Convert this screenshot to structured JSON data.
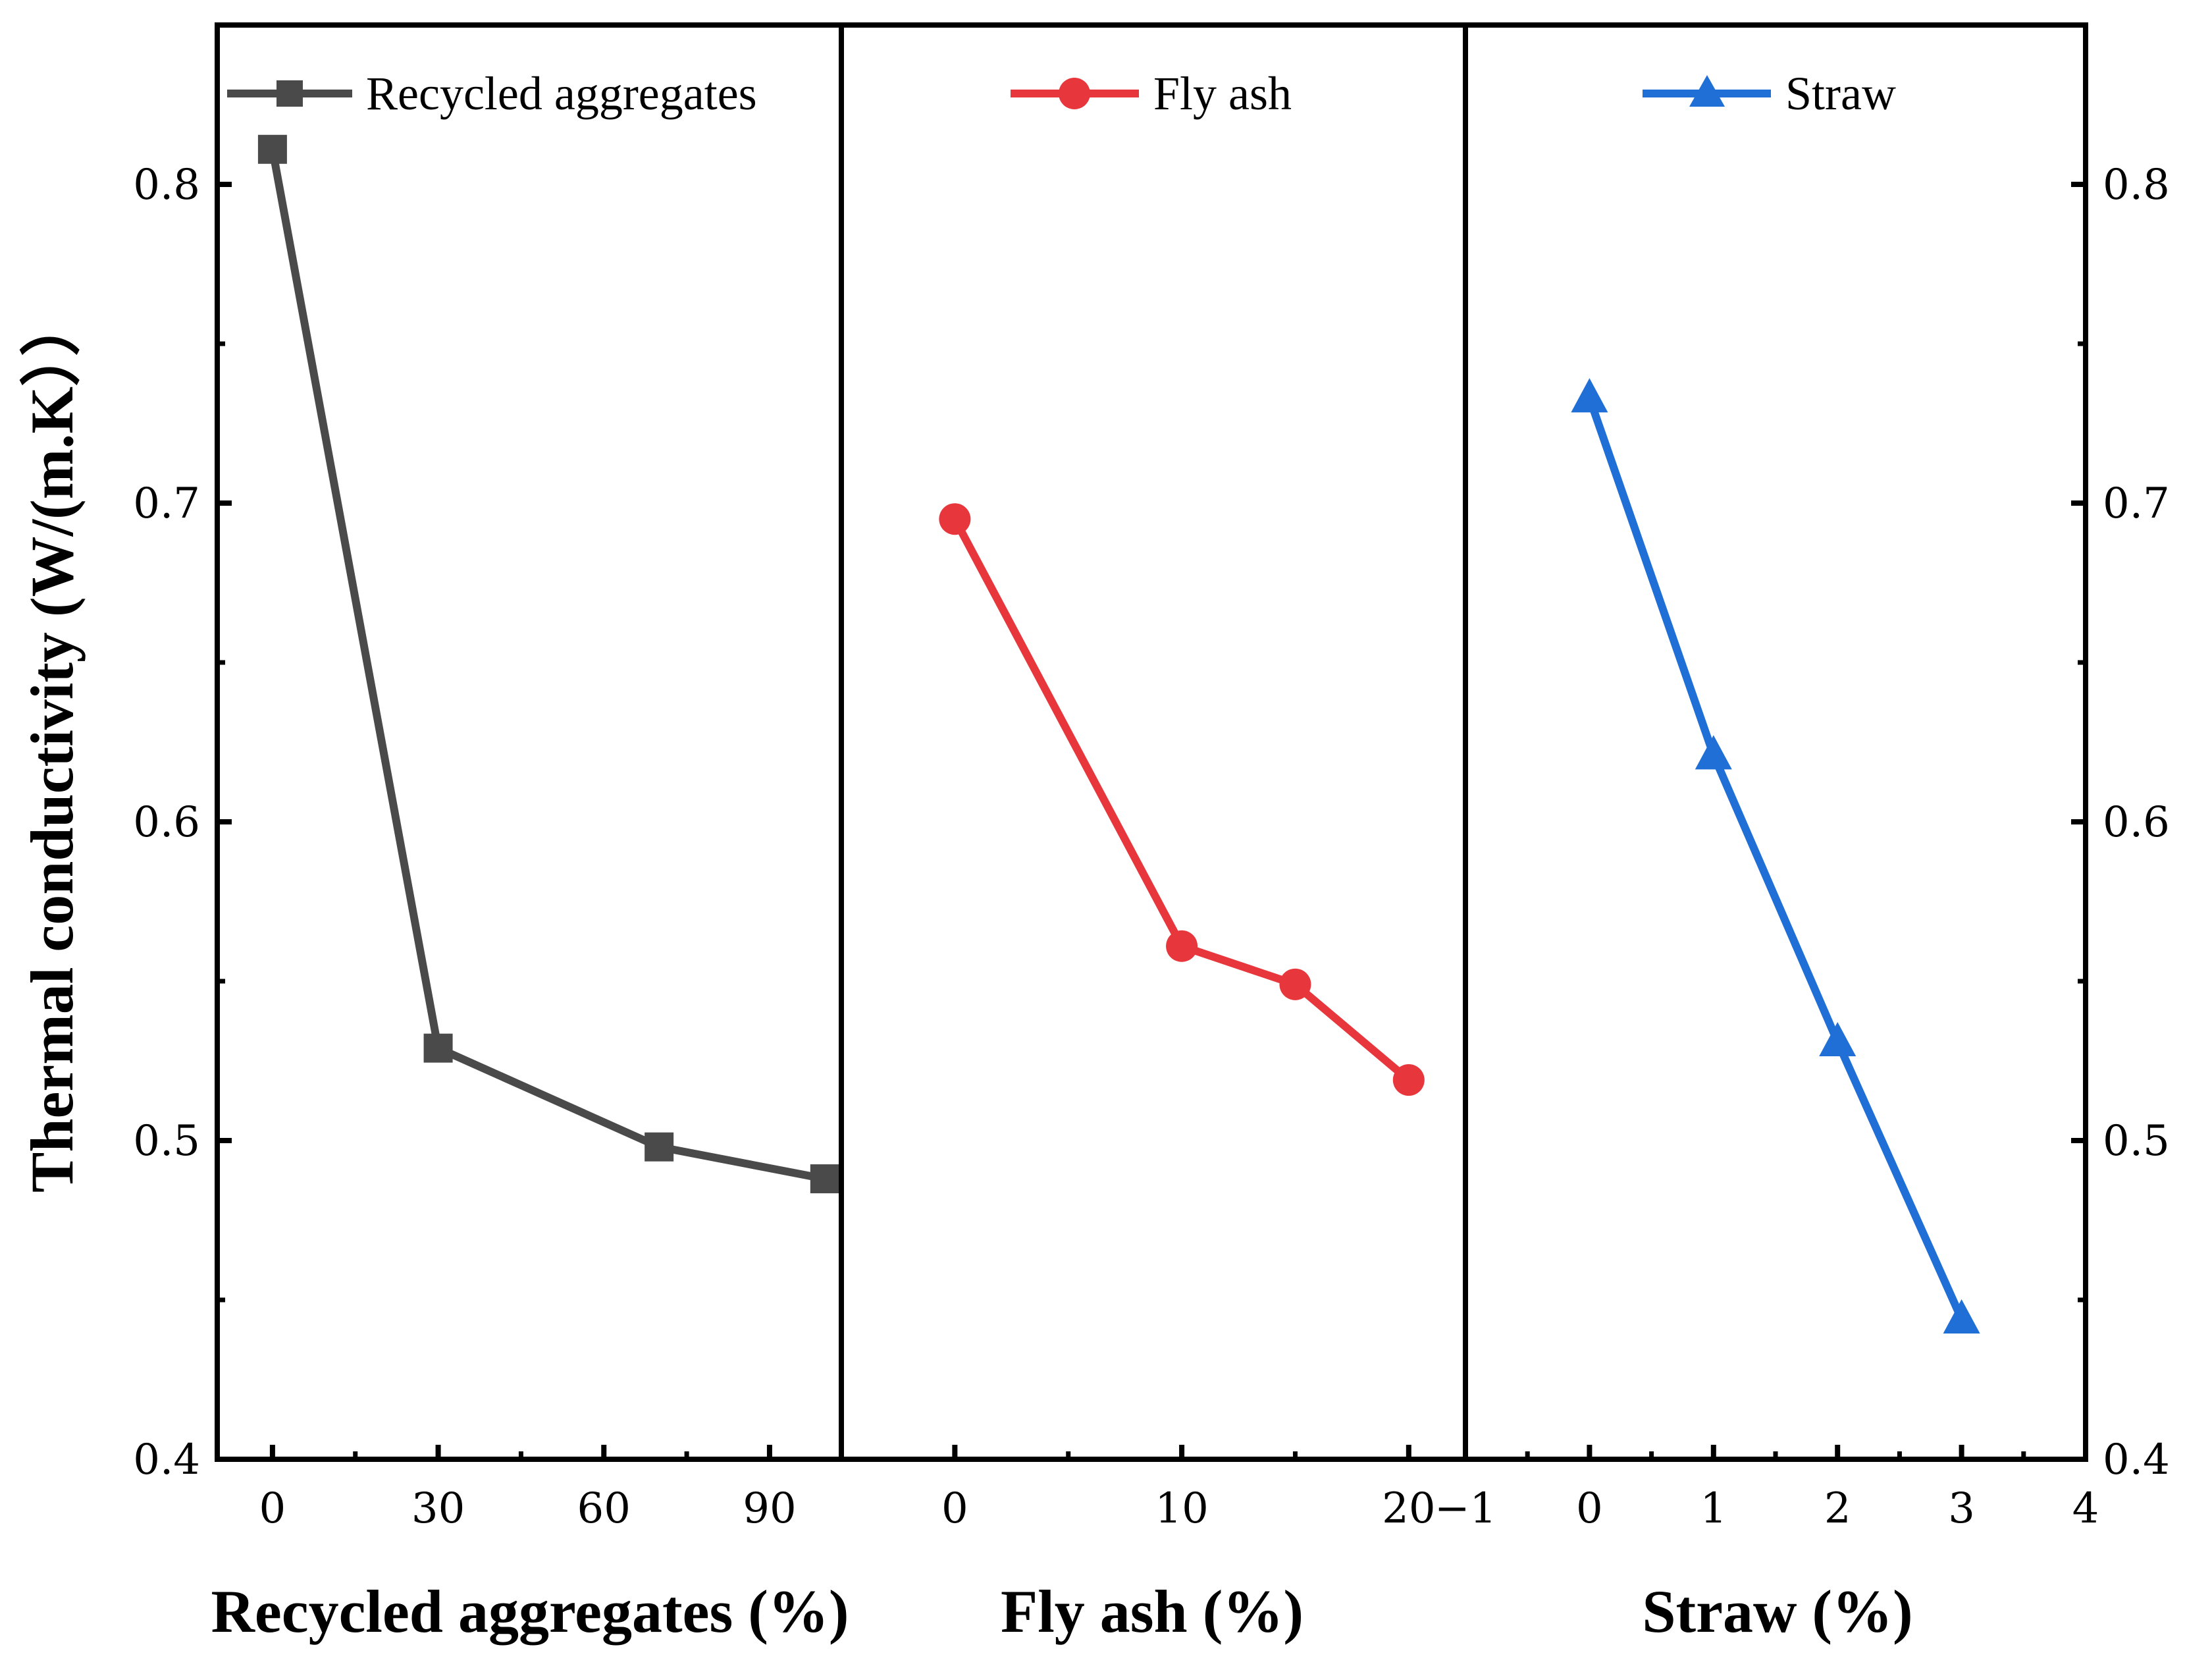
{
  "chart_data": [
    {
      "type": "line",
      "name": "recycled",
      "xlabel": "Recycled aggregates (%)",
      "ylabel": "Thermal conductivity (W/(m.K））",
      "xlim": [
        -10,
        103
      ],
      "ylim": [
        0.4,
        0.85
      ],
      "xticks": [
        0,
        30,
        60,
        90
      ],
      "xminor": [
        15,
        45,
        75
      ],
      "yticks": [
        0.4,
        0.5,
        0.6,
        0.7,
        0.8
      ],
      "yticklabels": [
        "0.4",
        "0.5",
        "0.6",
        "0.7",
        "0.8"
      ],
      "series": [
        {
          "name": "Recycled aggregates",
          "color": "#4a4a4a",
          "marker": "square",
          "x": [
            0,
            30,
            70,
            100
          ],
          "y": [
            0.811,
            0.529,
            0.498,
            0.488
          ]
        }
      ]
    },
    {
      "type": "line",
      "name": "flyash",
      "xlabel": "Fly ash (%)",
      "xlim": [
        -5,
        22.5
      ],
      "ylim": [
        0.4,
        0.85
      ],
      "xticks": [
        0,
        10,
        20
      ],
      "xminor": [
        5,
        15
      ],
      "series": [
        {
          "name": "Fly ash",
          "color": "#e8373c",
          "marker": "circle",
          "x": [
            0,
            10,
            15,
            20
          ],
          "y": [
            0.695,
            0.561,
            0.549,
            0.519
          ]
        }
      ]
    },
    {
      "type": "line",
      "name": "straw",
      "xlabel": "Straw (%)",
      "xlim": [
        -1,
        4
      ],
      "ylim": [
        0.4,
        0.85
      ],
      "xticks": [
        -1,
        0,
        1,
        2,
        3,
        4
      ],
      "xticklabels": [
        "−1",
        "0",
        "1",
        "2",
        "3",
        "4"
      ],
      "xminor": [
        -0.5,
        0.5,
        1.5,
        2.5,
        3.5
      ],
      "yticks": [
        0.4,
        0.5,
        0.6,
        0.7,
        0.8
      ],
      "yticklabels": [
        "0.4",
        "0.5",
        "0.6",
        "0.7",
        "0.8"
      ],
      "series": [
        {
          "name": "Straw",
          "color": "#1f6fd6",
          "marker": "triangle",
          "x": [
            0,
            1,
            2,
            3
          ],
          "y": [
            0.733,
            0.621,
            0.531,
            0.444
          ]
        }
      ]
    }
  ]
}
